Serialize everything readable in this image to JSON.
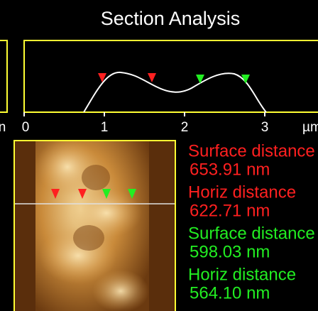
{
  "header": {
    "title": "Section Analysis"
  },
  "profile": {
    "left_axis_label": "n",
    "ticks": [
      "0",
      "1",
      "2",
      "3"
    ],
    "unit": "µm"
  },
  "measurements": [
    {
      "label": "Surface distance",
      "value": "653.91  nm"
    },
    {
      "label": "Horiz distance",
      "value": "622.71  nm"
    },
    {
      "label": "Surface distance",
      "value": "598.03  nm"
    },
    {
      "label": "Horiz distance",
      "value": "564.10  nm"
    }
  ]
}
